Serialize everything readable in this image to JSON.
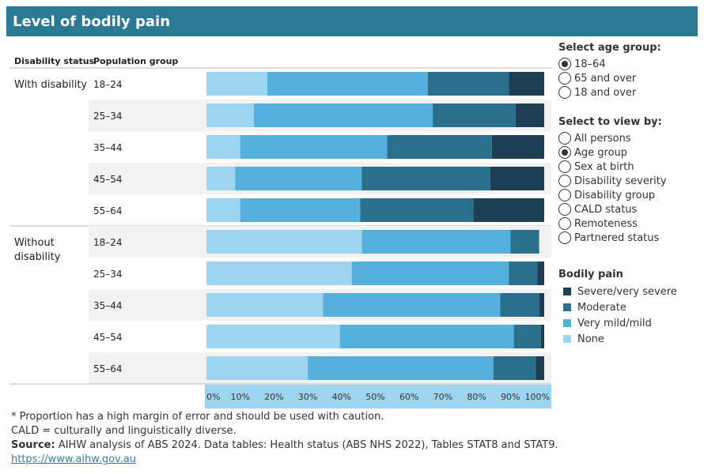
{
  "title": "Level of bodily pain",
  "age_selector": {
    "heading": "Select age group:",
    "options": [
      {
        "label": "18–64",
        "selected": true
      },
      {
        "label": "65 and over",
        "selected": false
      },
      {
        "label": "18 and over",
        "selected": false
      }
    ]
  },
  "view_selector": {
    "heading": "Select to view by:",
    "options": [
      {
        "label": "All persons",
        "selected": false
      },
      {
        "label": "Age group",
        "selected": true
      },
      {
        "label": "Sex at birth",
        "selected": false
      },
      {
        "label": "Disability severity",
        "selected": false
      },
      {
        "label": "Disability group",
        "selected": false
      },
      {
        "label": "CALD status",
        "selected": false
      },
      {
        "label": "Remoteness",
        "selected": false
      },
      {
        "label": "Partnered status",
        "selected": false
      }
    ]
  },
  "legend": {
    "heading": "Bodily pain",
    "items": [
      {
        "label": "Severe/very severe",
        "color": "#1c3f53"
      },
      {
        "label": "Moderate",
        "color": "#2a6f8b"
      },
      {
        "label": "Very mild/mild",
        "color": "#56b0dd"
      },
      {
        "label": "None",
        "color": "#9dd5f1"
      }
    ]
  },
  "footnotes": {
    "line1": "* Proportion has a high margin of error and should be used with caution.",
    "line2": "CALD = culturally and linguistically diverse.",
    "source_label": "Source:",
    "source_text": " AIHW analysis of ABS 2024. Data tables: Health status (ABS NHS 2022), Tables STAT8 and STAT9.",
    "link": "https://www.aihw.gov.au"
  },
  "chart_data": {
    "type": "bar",
    "orientation": "horizontal",
    "stacked": true,
    "column_headers": [
      "Disability status",
      "Population group"
    ],
    "groups": [
      {
        "label": "With disability",
        "categories": [
          "18–24",
          "25–34",
          "35–44",
          "45–54",
          "55–64"
        ]
      },
      {
        "label": "Without disability",
        "categories": [
          "18–24",
          "25–34",
          "35–44",
          "45–54",
          "55–64"
        ]
      }
    ],
    "series": [
      {
        "name": "None",
        "color": "#9dd5f1",
        "values": [
          18,
          14,
          10,
          8.5,
          10,
          46,
          43,
          34.5,
          39.5,
          30
        ]
      },
      {
        "name": "Very mild/mild",
        "color": "#56b0dd",
        "values": [
          47.5,
          53,
          43.5,
          37.5,
          35.5,
          44,
          46.5,
          52.5,
          51.5,
          55
        ]
      },
      {
        "name": "Moderate",
        "color": "#2a6f8b",
        "values": [
          24,
          24.5,
          31,
          38,
          33.5,
          8.5,
          8.5,
          11.5,
          8,
          12.5
        ]
      },
      {
        "name": "Severe/very severe",
        "color": "#1c3f53",
        "values": [
          10.5,
          8.5,
          15.5,
          16,
          21,
          0,
          2,
          1.5,
          1,
          2.5
        ]
      }
    ],
    "x_ticks": [
      "0%",
      "10%",
      "20%",
      "30%",
      "40%",
      "50%",
      "60%",
      "70%",
      "80%",
      "90%",
      "100%"
    ],
    "xlim": [
      0,
      100
    ]
  }
}
